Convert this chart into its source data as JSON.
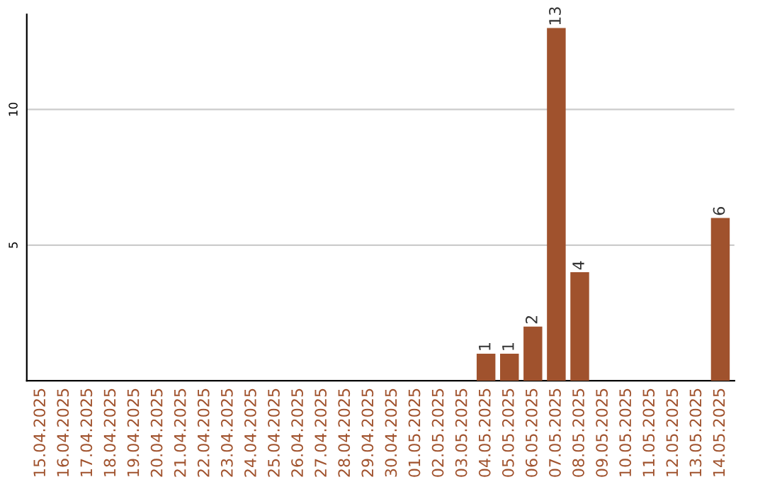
{
  "chart_data": {
    "type": "bar",
    "categories": [
      "15.04.2025",
      "16.04.2025",
      "17.04.2025",
      "18.04.2025",
      "19.04.2025",
      "20.04.2025",
      "21.04.2025",
      "22.04.2025",
      "23.04.2025",
      "24.04.2025",
      "25.04.2025",
      "26.04.2025",
      "27.04.2025",
      "28.04.2025",
      "29.04.2025",
      "30.04.2025",
      "01.05.2025",
      "02.05.2025",
      "03.05.2025",
      "04.05.2025",
      "05.05.2025",
      "06.05.2025",
      "07.05.2025",
      "08.05.2025",
      "09.05.2025",
      "10.05.2025",
      "11.05.2025",
      "12.05.2025",
      "13.05.2025",
      "14.05.2025"
    ],
    "values": [
      0,
      0,
      0,
      0,
      0,
      0,
      0,
      0,
      0,
      0,
      0,
      0,
      0,
      0,
      0,
      0,
      0,
      0,
      0,
      1,
      1,
      2,
      13,
      4,
      0,
      0,
      0,
      0,
      0,
      6
    ],
    "value_labels": [
      null,
      null,
      null,
      null,
      null,
      null,
      null,
      null,
      null,
      null,
      null,
      null,
      null,
      null,
      null,
      null,
      null,
      null,
      null,
      "1",
      "1",
      "2",
      "13",
      "4",
      null,
      null,
      null,
      null,
      null,
      "6"
    ],
    "color": "#a0522d",
    "ylim": [
      0,
      13.5
    ],
    "yticks": [
      5,
      10
    ],
    "grid": "y"
  }
}
